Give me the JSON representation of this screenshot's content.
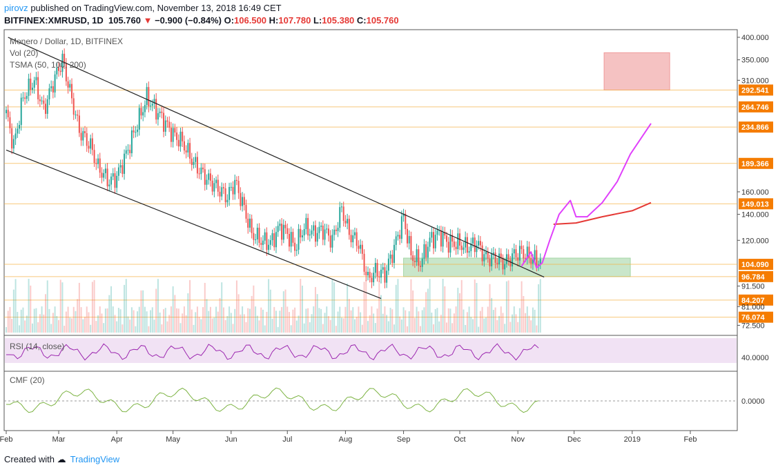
{
  "header": {
    "author": "pirovz",
    "published": "published on TradingView.com, November 13, 2018 16:49 CET",
    "symbol": "BITFINEX:XMRUSD, 1D",
    "last": "105.760",
    "change": "−0.900 (−0.84%)",
    "o_label": "O:",
    "o": "106.500",
    "h_label": "H:",
    "h": "107.780",
    "l_label": "L:",
    "l": "105.380",
    "c_label": "C:",
    "c": "105.760"
  },
  "footer": {
    "created": "Created with",
    "brand": "TradingView"
  },
  "colors": {
    "bull": "#26a69a",
    "bear": "#ef5350",
    "hline": "#f5b041",
    "label": "#f57c00",
    "forecast": "#e040fb",
    "forecast2": "#e53935",
    "zoneGreen": "#a5d6a7",
    "zoneRed": "#ef9a9a"
  },
  "chart_data": {
    "type": "candlestick",
    "title": "Monero / Dollar, 1D, BITFINEX",
    "indicators": [
      "Vol (20)",
      "TSMA (50, 100, 200)"
    ],
    "yscale": "log",
    "ylim": [
      70,
      410
    ],
    "x_ticks": [
      "Feb",
      "Mar",
      "Apr",
      "May",
      "Jun",
      "Jul",
      "Aug",
      "Sep",
      "Oct",
      "Nov",
      "Dec",
      "2019",
      "Feb"
    ],
    "x_tick_dates": [
      "2018-02-01",
      "2018-03-01",
      "2018-04-01",
      "2018-05-01",
      "2018-06-01",
      "2018-07-01",
      "2018-08-01",
      "2018-09-01",
      "2018-10-01",
      "2018-11-01",
      "2018-12-01",
      "2019-01-01",
      "2019-02-01"
    ],
    "y_ticks": [
      "400.000",
      "350.000",
      "310.000",
      "160.000",
      "140.000",
      "120.000",
      "91.500",
      "81.000",
      "72.500"
    ],
    "y_tick_values": [
      400,
      350,
      310,
      160,
      140,
      120,
      91.5,
      81,
      72.5
    ],
    "levels": [
      "292.541",
      "264.746",
      "234.866",
      "189.366",
      "149.013",
      "104.090",
      "96.784",
      "84.207",
      "76.074"
    ],
    "level_values": [
      292.541,
      264.746,
      234.866,
      189.366,
      149.013,
      104.09,
      96.784,
      84.207,
      76.074
    ],
    "price_path": {
      "dates": [
        "2018-02-01",
        "2018-02-05",
        "2018-02-10",
        "2018-02-16",
        "2018-02-21",
        "2018-02-27",
        "2018-03-03",
        "2018-03-07",
        "2018-03-12",
        "2018-03-18",
        "2018-03-22",
        "2018-03-28",
        "2018-04-01",
        "2018-04-06",
        "2018-04-12",
        "2018-04-17",
        "2018-04-22",
        "2018-04-27",
        "2018-05-01",
        "2018-05-06",
        "2018-05-12",
        "2018-05-18",
        "2018-05-24",
        "2018-05-30",
        "2018-06-03",
        "2018-06-07",
        "2018-06-12",
        "2018-06-17",
        "2018-06-22",
        "2018-06-27",
        "2018-07-01",
        "2018-07-05",
        "2018-07-10",
        "2018-07-15",
        "2018-07-20",
        "2018-07-25",
        "2018-07-30",
        "2018-08-03",
        "2018-08-08",
        "2018-08-13",
        "2018-08-17",
        "2018-08-22",
        "2018-08-27",
        "2018-09-01",
        "2018-09-05",
        "2018-09-10",
        "2018-09-15",
        "2018-09-20",
        "2018-09-25",
        "2018-09-30",
        "2018-10-05",
        "2018-10-10",
        "2018-10-15",
        "2018-10-20",
        "2018-10-25",
        "2018-10-30",
        "2018-11-03",
        "2018-11-08",
        "2018-11-13"
      ],
      "close": [
        255,
        210,
        280,
        310,
        260,
        315,
        350,
        290,
        230,
        210,
        185,
        170,
        175,
        200,
        240,
        280,
        260,
        240,
        225,
        215,
        190,
        175,
        165,
        155,
        170,
        150,
        125,
        120,
        118,
        130,
        125,
        115,
        130,
        125,
        128,
        120,
        145,
        125,
        118,
        95,
        100,
        98,
        115,
        138,
        110,
        105,
        120,
        125,
        118,
        118,
        115,
        118,
        108,
        108,
        105,
        110,
        112,
        108,
        106
      ]
    },
    "channel_lines": [
      {
        "name": "upper",
        "from": [
          "2018-02-02",
          400
        ],
        "to": [
          "2018-11-15",
          96.5
        ]
      },
      {
        "name": "lower",
        "from": [
          "2018-02-01",
          205
        ],
        "to": [
          "2018-08-20",
          85
        ]
      }
    ],
    "zones": [
      {
        "color": "red",
        "from": "2018-12-17",
        "to": "2019-01-21",
        "low": 292.541,
        "high": 365
      },
      {
        "color": "green",
        "from": "2018-09-01",
        "to": "2018-12-31",
        "low": 96.784,
        "high": 108
      }
    ],
    "forecast_magenta": {
      "dates": [
        "2018-11-03",
        "2018-11-08",
        "2018-11-11",
        "2018-11-14",
        "2018-11-18",
        "2018-11-23",
        "2018-11-29",
        "2018-12-02",
        "2018-12-08",
        "2018-12-16",
        "2018-12-24",
        "2018-12-31",
        "2019-01-11"
      ],
      "values": [
        103,
        112,
        102,
        105,
        120,
        140,
        152,
        138,
        138,
        150,
        170,
        200,
        240
      ]
    },
    "forecast_red": {
      "dates": [
        "2018-11-20",
        "2018-12-02",
        "2018-12-16",
        "2019-01-01",
        "2019-01-11"
      ],
      "values": [
        132,
        133,
        138,
        143,
        150
      ]
    },
    "panels": [
      {
        "name": "RSI (14, close)",
        "tick": "40.0000"
      },
      {
        "name": "CMF (20)",
        "tick": "0.0000"
      }
    ]
  }
}
